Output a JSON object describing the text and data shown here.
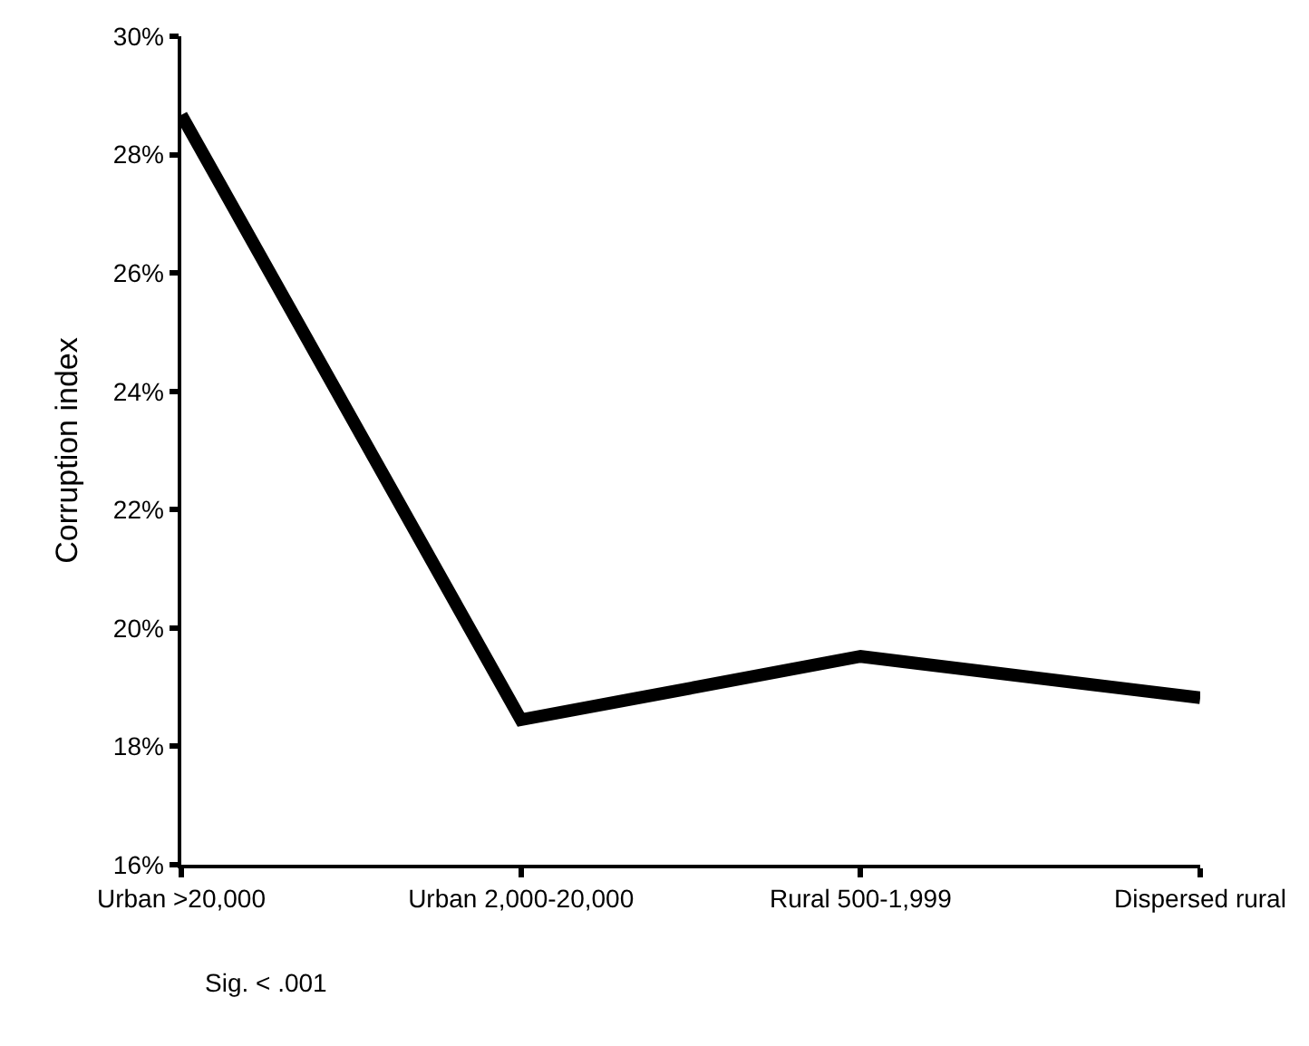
{
  "chart_data": {
    "type": "line",
    "ylabel": "Corruption index",
    "categories": [
      "Urban >20,000",
      "Urban 2,000-20,000",
      "Rural 500-1,999",
      "Dispersed rural"
    ],
    "series": [
      {
        "color": "#000000",
        "values": [
          28.67,
          18.45,
          19.52,
          18.82
        ]
      }
    ],
    "ylim": [
      16,
      30
    ],
    "yticks": [
      {
        "value": 16,
        "label": "16%"
      },
      {
        "value": 18,
        "label": "18%"
      },
      {
        "value": 20,
        "label": "20%"
      },
      {
        "value": 22,
        "label": "22%"
      },
      {
        "value": 24,
        "label": "24%"
      },
      {
        "value": 26,
        "label": "26%"
      },
      {
        "value": 28,
        "label": "28%"
      },
      {
        "value": 30,
        "label": "30%"
      }
    ],
    "annotations": [
      "Sig. < .001"
    ],
    "marker": "none",
    "line_style": "solid"
  }
}
